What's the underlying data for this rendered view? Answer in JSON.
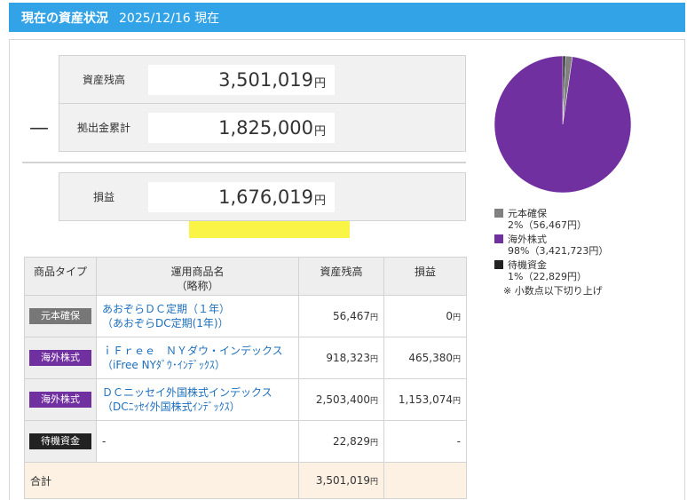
{
  "header": {
    "title": "現在の資産状況",
    "date": "2025/12/16 現在"
  },
  "summary": {
    "dash": "—",
    "balance": {
      "label": "資産残高",
      "value": "3,501,019",
      "unit": "円"
    },
    "contributions": {
      "label": "拠出金累計",
      "value": "1,825,000",
      "unit": "円"
    },
    "profit": {
      "label": "損益",
      "value": "1,676,019",
      "unit": "円"
    }
  },
  "table": {
    "headers": {
      "type": "商品タイプ",
      "name_line1": "運用商品名",
      "name_line2": "（略称）",
      "balance": "資産残高",
      "profit": "損益"
    },
    "rows": [
      {
        "tag": "元本確保",
        "tag_color": "#777777",
        "name": "あおぞらＤＣ定期（１年）",
        "short": "（あおぞらDC定期(1年)）",
        "balance": "56,467",
        "profit": "0"
      },
      {
        "tag": "海外株式",
        "tag_color": "#7030a0",
        "name": "ｉＦｒｅｅ　ＮＹダウ・インデックス",
        "short": "（iFree NYﾀﾞｳ･ｲﾝﾃﾞｯｸｽ）",
        "balance": "918,323",
        "profit": "465,380"
      },
      {
        "tag": "海外株式",
        "tag_color": "#7030a0",
        "name": "ＤＣニッセイ外国株式インデックス",
        "short": "（DCﾆｯｾｲ外国株式ｲﾝﾃﾞｯｸｽ）",
        "balance": "2,503,400",
        "profit": "1,153,074"
      },
      {
        "tag": "待機資金",
        "tag_color": "#222222",
        "name": "-",
        "short": "",
        "balance": "22,829",
        "profit": "-"
      }
    ],
    "yen": "円",
    "total": {
      "label": "合計",
      "balance": "3,501,019"
    }
  },
  "allocation": {
    "legend": [
      {
        "name": "元本確保",
        "detail": "2%（56,467円）",
        "color": "#808080",
        "percent": 1.61
      },
      {
        "name": "海外株式",
        "detail": "98%（3,421,723円）",
        "color": "#7030a0",
        "percent": 97.74
      },
      {
        "name": "待機資金",
        "detail": "1%（22,829円）",
        "color": "#222222",
        "percent": 0.65
      }
    ],
    "note": "※ 小数点以下切り上げ"
  }
}
